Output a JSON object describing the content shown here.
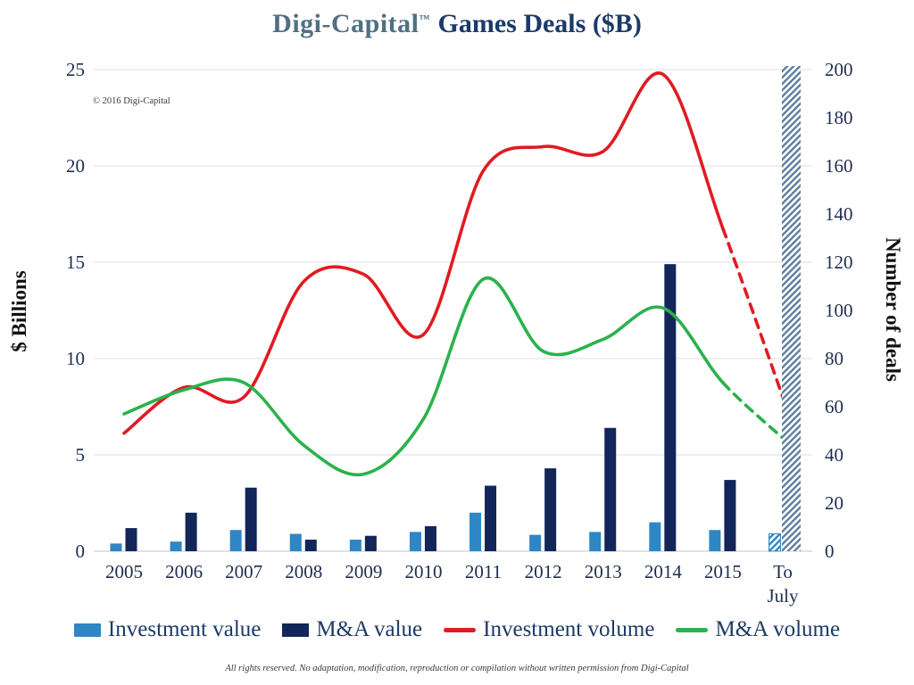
{
  "title": {
    "brand": "Digi-Capital",
    "tm": "™",
    "rest": "Games Deals ($B)"
  },
  "copyright": "© 2016 Digi-Capital",
  "footer": "All rights reserved. No adaptation, modification, reproduction or compilation without written permission from Digi-Capital",
  "colors": {
    "investment_value": "#2e86c5",
    "ma_value": "#13265a",
    "investment_volume": "#e01b22",
    "ma_volume": "#2bb24c",
    "projection_hatch": "#5e7d9c",
    "grid": "#dcdcdc",
    "axis_text": "#1e2d4f",
    "title_navy": "#1b3a69",
    "brand_teal": "#4f7082"
  },
  "legend": [
    {
      "label": "Investment value",
      "type": "bar",
      "color": "#2e86c5"
    },
    {
      "label": "M&A value",
      "type": "bar",
      "color": "#13265a"
    },
    {
      "label": "Investment volume",
      "type": "line",
      "color": "#e01b22"
    },
    {
      "label": "M&A volume",
      "type": "line",
      "color": "#2bb24c"
    }
  ],
  "chart_data": {
    "type": "bar+line combo",
    "categories": [
      "2005",
      "2006",
      "2007",
      "2008",
      "2009",
      "2010",
      "2011",
      "2012",
      "2013",
      "2014",
      "2015",
      "To July"
    ],
    "left_axis": {
      "label": "$ Billions",
      "range": [
        0,
        25
      ],
      "ticks": [
        0,
        5,
        10,
        15,
        20,
        25
      ]
    },
    "right_axis": {
      "label": "Number of deals",
      "range": [
        0,
        200
      ],
      "ticks": [
        0,
        20,
        40,
        60,
        80,
        100,
        120,
        140,
        160,
        180,
        200
      ]
    },
    "grid": true,
    "legend_position": "bottom",
    "bar_series": [
      {
        "name": "Investment value",
        "axis": "left",
        "color": "#2e86c5",
        "values": [
          0.4,
          0.5,
          1.1,
          0.9,
          0.6,
          1.0,
          2.0,
          0.85,
          1.0,
          1.5,
          1.1,
          0.9
        ],
        "last_bar_hatched": true
      },
      {
        "name": "M&A value",
        "axis": "left",
        "color": "#13265a",
        "values": [
          1.2,
          2.0,
          3.3,
          0.6,
          0.8,
          1.3,
          3.4,
          4.3,
          6.4,
          14.9,
          3.7,
          null
        ],
        "last_bar_hatched": false
      }
    ],
    "line_series": [
      {
        "name": "Investment volume",
        "axis": "right",
        "color": "#e01b22",
        "values": [
          49,
          68,
          64,
          112,
          115,
          90,
          158,
          168,
          166,
          198,
          134,
          64
        ],
        "dashed_from_index": 10
      },
      {
        "name": "M&A volume",
        "axis": "right",
        "color": "#2bb24c",
        "values": [
          57,
          67,
          70,
          44,
          32,
          55,
          113,
          83,
          88,
          101,
          70,
          47
        ],
        "dashed_from_index": 10
      }
    ],
    "projection_bar": {
      "category": "To July",
      "style": "diagonal-hatch",
      "color": "#5e7d9c",
      "full_height": true
    }
  }
}
